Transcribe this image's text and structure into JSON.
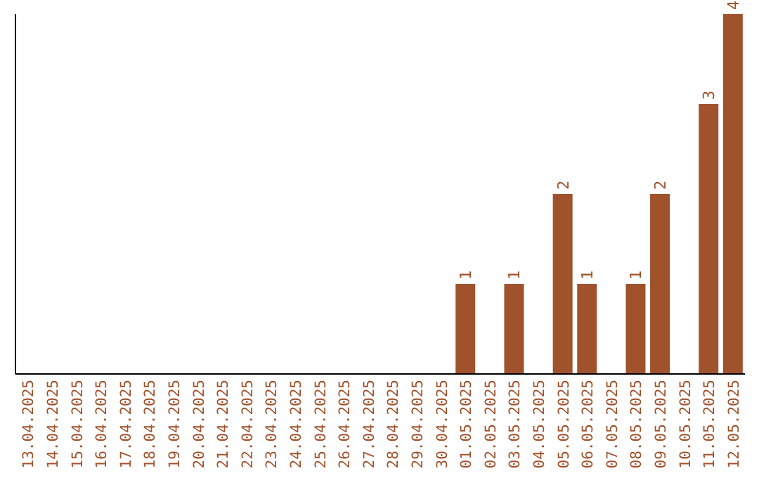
{
  "chart_data": {
    "type": "bar",
    "categories": [
      "13.04.2025",
      "14.04.2025",
      "15.04.2025",
      "16.04.2025",
      "17.04.2025",
      "18.04.2025",
      "19.04.2025",
      "20.04.2025",
      "21.04.2025",
      "22.04.2025",
      "23.04.2025",
      "24.04.2025",
      "25.04.2025",
      "26.04.2025",
      "27.04.2025",
      "28.04.2025",
      "29.04.2025",
      "30.04.2025",
      "01.05.2025",
      "02.05.2025",
      "03.05.2025",
      "04.05.2025",
      "05.05.2025",
      "06.05.2025",
      "07.05.2025",
      "08.05.2025",
      "09.05.2025",
      "10.05.2025",
      "11.05.2025",
      "12.05.2025"
    ],
    "values": [
      null,
      null,
      null,
      null,
      null,
      null,
      null,
      null,
      null,
      null,
      null,
      null,
      null,
      null,
      null,
      null,
      null,
      null,
      1,
      null,
      1,
      null,
      2,
      1,
      null,
      1,
      2,
      null,
      3,
      4
    ],
    "color": "#a0522d",
    "data_labels": true,
    "tick_labels": "x",
    "grid": false
  }
}
